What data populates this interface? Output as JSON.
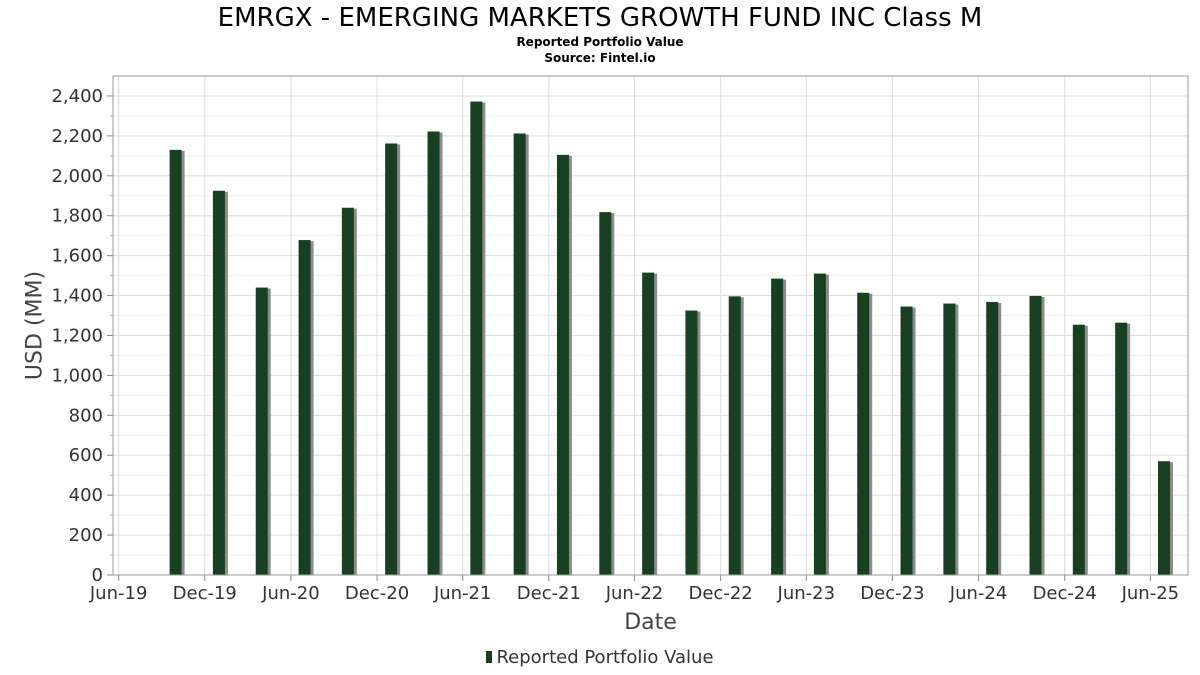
{
  "chart_data": {
    "type": "bar",
    "title": "EMRGX - EMERGING MARKETS GROWTH FUND INC Class M",
    "subtitle": "Reported Portfolio Value",
    "source": "Source: Fintel.io",
    "xlabel": "Date",
    "ylabel": "USD (MM)",
    "ylim": [
      0,
      2500
    ],
    "yticks": [
      0,
      200,
      400,
      600,
      800,
      1000,
      1200,
      1400,
      1600,
      1800,
      2000,
      2200,
      2400
    ],
    "ytick_labels": [
      "0",
      "200",
      "400",
      "600",
      "800",
      "1,000",
      "1,200",
      "1,400",
      "1,600",
      "1,800",
      "2,000",
      "2,200",
      "2,400"
    ],
    "xlim": [
      "2019-05-20",
      "2025-08-20"
    ],
    "xticks": [
      {
        "date": "2019-06-01",
        "label": "Jun-19"
      },
      {
        "date": "2019-12-01",
        "label": "Dec-19"
      },
      {
        "date": "2020-06-01",
        "label": "Jun-20"
      },
      {
        "date": "2020-12-01",
        "label": "Dec-20"
      },
      {
        "date": "2021-06-01",
        "label": "Jun-21"
      },
      {
        "date": "2021-12-01",
        "label": "Dec-21"
      },
      {
        "date": "2022-06-01",
        "label": "Jun-22"
      },
      {
        "date": "2022-12-01",
        "label": "Dec-22"
      },
      {
        "date": "2023-06-01",
        "label": "Jun-23"
      },
      {
        "date": "2023-12-01",
        "label": "Dec-23"
      },
      {
        "date": "2024-06-01",
        "label": "Jun-24"
      },
      {
        "date": "2024-12-01",
        "label": "Dec-24"
      },
      {
        "date": "2025-06-01",
        "label": "Jun-25"
      }
    ],
    "grid": true,
    "legend_position": "bottom-center",
    "series": [
      {
        "name": "Reported Portfolio Value",
        "color": "#173f22",
        "points": [
          {
            "x": "2019-09-30",
            "y": 2130
          },
          {
            "x": "2019-12-31",
            "y": 1925
          },
          {
            "x": "2020-03-31",
            "y": 1440
          },
          {
            "x": "2020-06-30",
            "y": 1678
          },
          {
            "x": "2020-09-30",
            "y": 1840
          },
          {
            "x": "2020-12-31",
            "y": 2162
          },
          {
            "x": "2021-03-31",
            "y": 2222
          },
          {
            "x": "2021-06-30",
            "y": 2372
          },
          {
            "x": "2021-09-30",
            "y": 2212
          },
          {
            "x": "2021-12-31",
            "y": 2105
          },
          {
            "x": "2022-03-31",
            "y": 1818
          },
          {
            "x": "2022-06-30",
            "y": 1515
          },
          {
            "x": "2022-09-30",
            "y": 1325
          },
          {
            "x": "2022-12-31",
            "y": 1396
          },
          {
            "x": "2023-03-31",
            "y": 1485
          },
          {
            "x": "2023-06-30",
            "y": 1510
          },
          {
            "x": "2023-09-30",
            "y": 1414
          },
          {
            "x": "2023-12-31",
            "y": 1345
          },
          {
            "x": "2024-03-31",
            "y": 1360
          },
          {
            "x": "2024-06-30",
            "y": 1368
          },
          {
            "x": "2024-09-30",
            "y": 1398
          },
          {
            "x": "2024-12-31",
            "y": 1254
          },
          {
            "x": "2025-03-31",
            "y": 1264
          },
          {
            "x": "2025-06-30",
            "y": 570
          }
        ]
      }
    ]
  }
}
